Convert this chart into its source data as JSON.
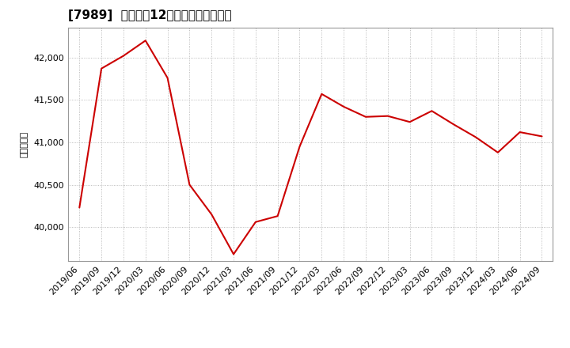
{
  "title": "[7989]  売上高の12か月移動合計の推移",
  "ylabel": "（百万円）",
  "line_color": "#cc0000",
  "background_color": "#ffffff",
  "plot_bg_color": "#ffffff",
  "grid_color": "#aaaaaa",
  "dates": [
    "2019/06",
    "2019/09",
    "2019/12",
    "2020/03",
    "2020/06",
    "2020/09",
    "2020/12",
    "2021/03",
    "2021/06",
    "2021/09",
    "2021/12",
    "2022/03",
    "2022/06",
    "2022/09",
    "2022/12",
    "2023/03",
    "2023/06",
    "2023/09",
    "2023/12",
    "2024/03",
    "2024/06",
    "2024/09"
  ],
  "values": [
    40230,
    41870,
    42020,
    42200,
    41760,
    40500,
    40150,
    39680,
    40060,
    40130,
    40950,
    41570,
    41420,
    41300,
    41310,
    41240,
    41370,
    41210,
    41060,
    40880,
    41120,
    41070
  ],
  "ylim": [
    39600,
    42350
  ],
  "yticks": [
    40000,
    40500,
    41000,
    41500,
    42000
  ],
  "xtick_labels": [
    "2019/06",
    "2019/09",
    "2019/12",
    "2020/03",
    "2020/06",
    "2020/09",
    "2020/12",
    "2021/03",
    "2021/06",
    "2021/09",
    "2021/12",
    "2022/03",
    "2022/06",
    "2022/09",
    "2022/12",
    "2023/03",
    "2023/06",
    "2023/09",
    "2023/12",
    "2024/03",
    "2024/06",
    "2024/09"
  ],
  "title_fontsize": 11,
  "tick_fontsize": 8,
  "ylabel_fontsize": 8
}
